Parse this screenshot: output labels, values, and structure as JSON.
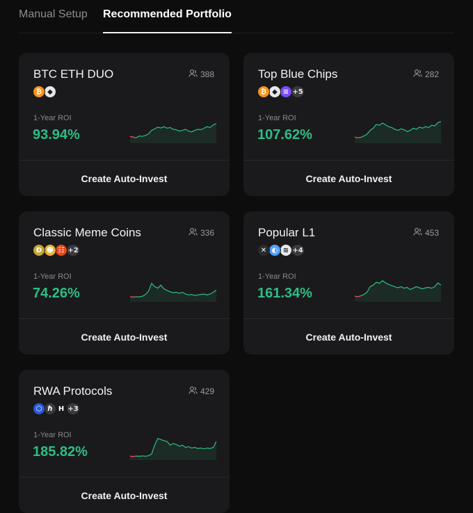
{
  "tabs": {
    "manual": "Manual Setup",
    "recommended": "Recommended Portfolio"
  },
  "colors": {
    "positive": "#2ebd85",
    "card_bg": "#1a1a1c",
    "page_bg": "#0d0d0e"
  },
  "cards": [
    {
      "name": "BTC ETH DUO",
      "followers": "388",
      "coins": [
        {
          "icon": "bitcoin-icon",
          "glyph": "₿",
          "color": "#f7931a"
        },
        {
          "icon": "ethereum-icon",
          "glyph": "◆",
          "color": "#e8e8e8"
        }
      ],
      "more": "",
      "roi_label": "1-Year ROI",
      "roi": "93.94%",
      "cta": "Create Auto-Invest",
      "chart_data": {
        "type": "area",
        "values": [
          0.18,
          0.15,
          0.12,
          0.2,
          0.18,
          0.22,
          0.3,
          0.45,
          0.52,
          0.6,
          0.56,
          0.62,
          0.55,
          0.58,
          0.5,
          0.48,
          0.42,
          0.45,
          0.5,
          0.42,
          0.38,
          0.45,
          0.5,
          0.48,
          0.55,
          0.62,
          0.58,
          0.7,
          0.75
        ]
      }
    },
    {
      "name": "Top Blue Chips",
      "followers": "282",
      "coins": [
        {
          "icon": "bitcoin-icon",
          "glyph": "₿",
          "color": "#f7931a"
        },
        {
          "icon": "ethereum-icon",
          "glyph": "◆",
          "color": "#e8e8e8"
        },
        {
          "icon": "solana-icon",
          "glyph": "≡",
          "color": "#7b4dff"
        }
      ],
      "more": "+5",
      "roi_label": "1-Year ROI",
      "roi": "107.62%",
      "cta": "Create Auto-Invest",
      "chart_data": {
        "type": "area",
        "values": [
          0.15,
          0.12,
          0.14,
          0.2,
          0.28,
          0.45,
          0.55,
          0.72,
          0.68,
          0.78,
          0.7,
          0.62,
          0.58,
          0.5,
          0.45,
          0.52,
          0.48,
          0.4,
          0.45,
          0.55,
          0.5,
          0.6,
          0.55,
          0.62,
          0.58,
          0.68,
          0.65,
          0.8,
          0.85
        ]
      }
    },
    {
      "name": "Classic Meme Coins",
      "followers": "336",
      "coins": [
        {
          "icon": "dogecoin-icon",
          "glyph": "Ð",
          "color": "#c2a633"
        },
        {
          "icon": "pepe-icon",
          "glyph": "☻",
          "color": "#e9b03a"
        },
        {
          "icon": "shiba-icon",
          "glyph": "☷",
          "color": "#e8471b"
        }
      ],
      "more": "+2",
      "roi_label": "1-Year ROI",
      "roi": "74.26%",
      "cta": "Create Auto-Invest",
      "chart_data": {
        "type": "area",
        "values": [
          0.1,
          0.08,
          0.1,
          0.09,
          0.12,
          0.2,
          0.35,
          0.7,
          0.55,
          0.48,
          0.62,
          0.45,
          0.38,
          0.32,
          0.28,
          0.3,
          0.25,
          0.3,
          0.22,
          0.18,
          0.2,
          0.15,
          0.18,
          0.2,
          0.22,
          0.18,
          0.22,
          0.3,
          0.4
        ]
      }
    },
    {
      "name": "Popular L1",
      "followers": "453",
      "coins": [
        {
          "icon": "xrp-icon",
          "glyph": "✕",
          "color": "#2b2b2f"
        },
        {
          "icon": "sui-icon",
          "glyph": "◐",
          "color": "#4da2ff"
        },
        {
          "icon": "stellar-icon",
          "glyph": "≋",
          "color": "#e9e9e9"
        }
      ],
      "more": "+4",
      "roi_label": "1-Year ROI",
      "roi": "161.34%",
      "cta": "Create Auto-Invest",
      "chart_data": {
        "type": "area",
        "values": [
          0.12,
          0.1,
          0.14,
          0.2,
          0.3,
          0.55,
          0.62,
          0.75,
          0.7,
          0.82,
          0.72,
          0.65,
          0.6,
          0.55,
          0.5,
          0.55,
          0.48,
          0.52,
          0.42,
          0.48,
          0.55,
          0.5,
          0.45,
          0.5,
          0.52,
          0.48,
          0.55,
          0.72,
          0.62
        ]
      }
    },
    {
      "name": "RWA Protocols",
      "followers": "429",
      "coins": [
        {
          "icon": "chainlink-icon",
          "glyph": "⬡",
          "color": "#2a5ada"
        },
        {
          "icon": "hedera-icon",
          "glyph": "ℏ",
          "color": "#3a3a3e"
        },
        {
          "icon": "ondo-icon",
          "glyph": "H",
          "color": "#1a1a1c"
        }
      ],
      "more": "+3",
      "roi_label": "1-Year ROI",
      "roi": "185.82%",
      "cta": "Create Auto-Invest",
      "chart_data": {
        "type": "area",
        "values": [
          0.05,
          0.04,
          0.06,
          0.05,
          0.07,
          0.05,
          0.08,
          0.15,
          0.55,
          0.85,
          0.8,
          0.75,
          0.72,
          0.55,
          0.62,
          0.58,
          0.5,
          0.55,
          0.45,
          0.48,
          0.42,
          0.45,
          0.4,
          0.42,
          0.38,
          0.42,
          0.4,
          0.45,
          0.72
        ]
      }
    }
  ]
}
